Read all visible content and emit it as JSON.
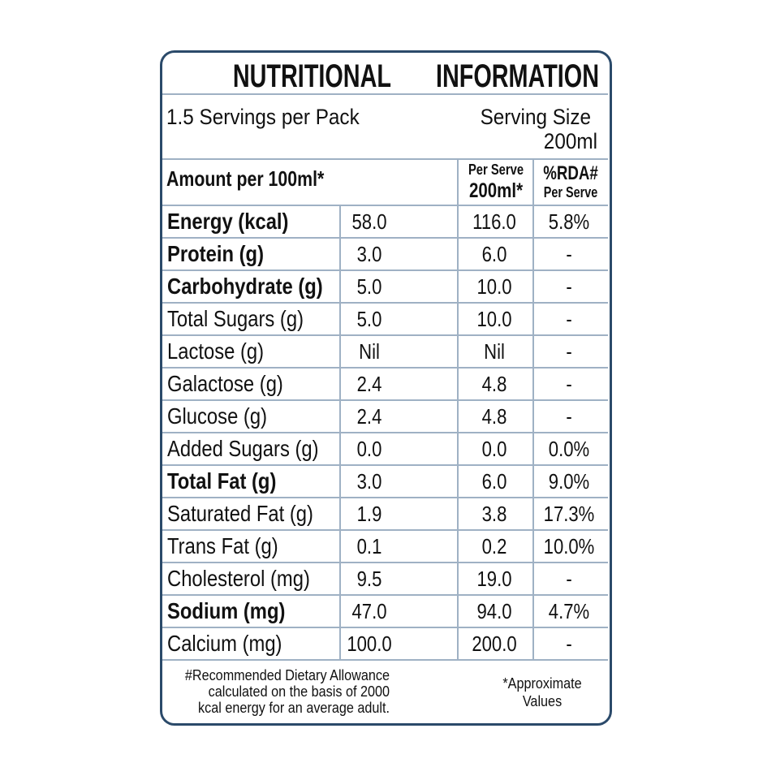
{
  "header": {
    "title_left": "NUTRITIONAL",
    "title_right": "INFORMATION",
    "servings": "1.5 Servings per Pack",
    "serving_size_label": "Serving Size",
    "serving_size_value": "200ml"
  },
  "table": {
    "columns": [
      "Amount per 100ml*",
      [
        "Per Serve",
        "200ml*"
      ],
      [
        "%RDA#",
        "Per Serve"
      ]
    ],
    "rows": [
      [
        "Energy (kcal)",
        "58.0",
        "116.0",
        "5.8%"
      ],
      [
        "Protein (g)",
        "3.0",
        "6.0",
        "-"
      ],
      [
        "Carbohydrate (g)",
        "5.0",
        "10.0",
        "-"
      ],
      [
        "Total Sugars (g)",
        "5.0",
        "10.0",
        "-"
      ],
      [
        "Lactose (g)",
        "Nil",
        "Nil",
        "-"
      ],
      [
        "Galactose (g)",
        "2.4",
        "4.8",
        "-"
      ],
      [
        "Glucose (g)",
        "2.4",
        "4.8",
        "-"
      ],
      [
        "Added Sugars (g)",
        "0.0",
        "0.0",
        "0.0%"
      ],
      [
        "Total Fat (g)",
        "3.0",
        "6.0",
        "9.0%"
      ],
      [
        "Saturated Fat (g)",
        "1.9",
        "3.8",
        "17.3%"
      ],
      [
        "Trans Fat (g)",
        "0.1",
        "0.2",
        "10.0%"
      ],
      [
        "Cholesterol (mg)",
        "9.5",
        "19.0",
        "-"
      ],
      [
        "Sodium (mg)",
        "47.0",
        "94.0",
        "4.7%"
      ],
      [
        "Calcium (mg)",
        "100.0",
        "200.0",
        "-"
      ]
    ]
  },
  "footnotes": {
    "rda": [
      "#Recommended Dietary Allowance",
      "calculated on the basis of 2000",
      "kcal energy for an average adult."
    ],
    "approx": [
      "*Approximate",
      "Values"
    ]
  }
}
